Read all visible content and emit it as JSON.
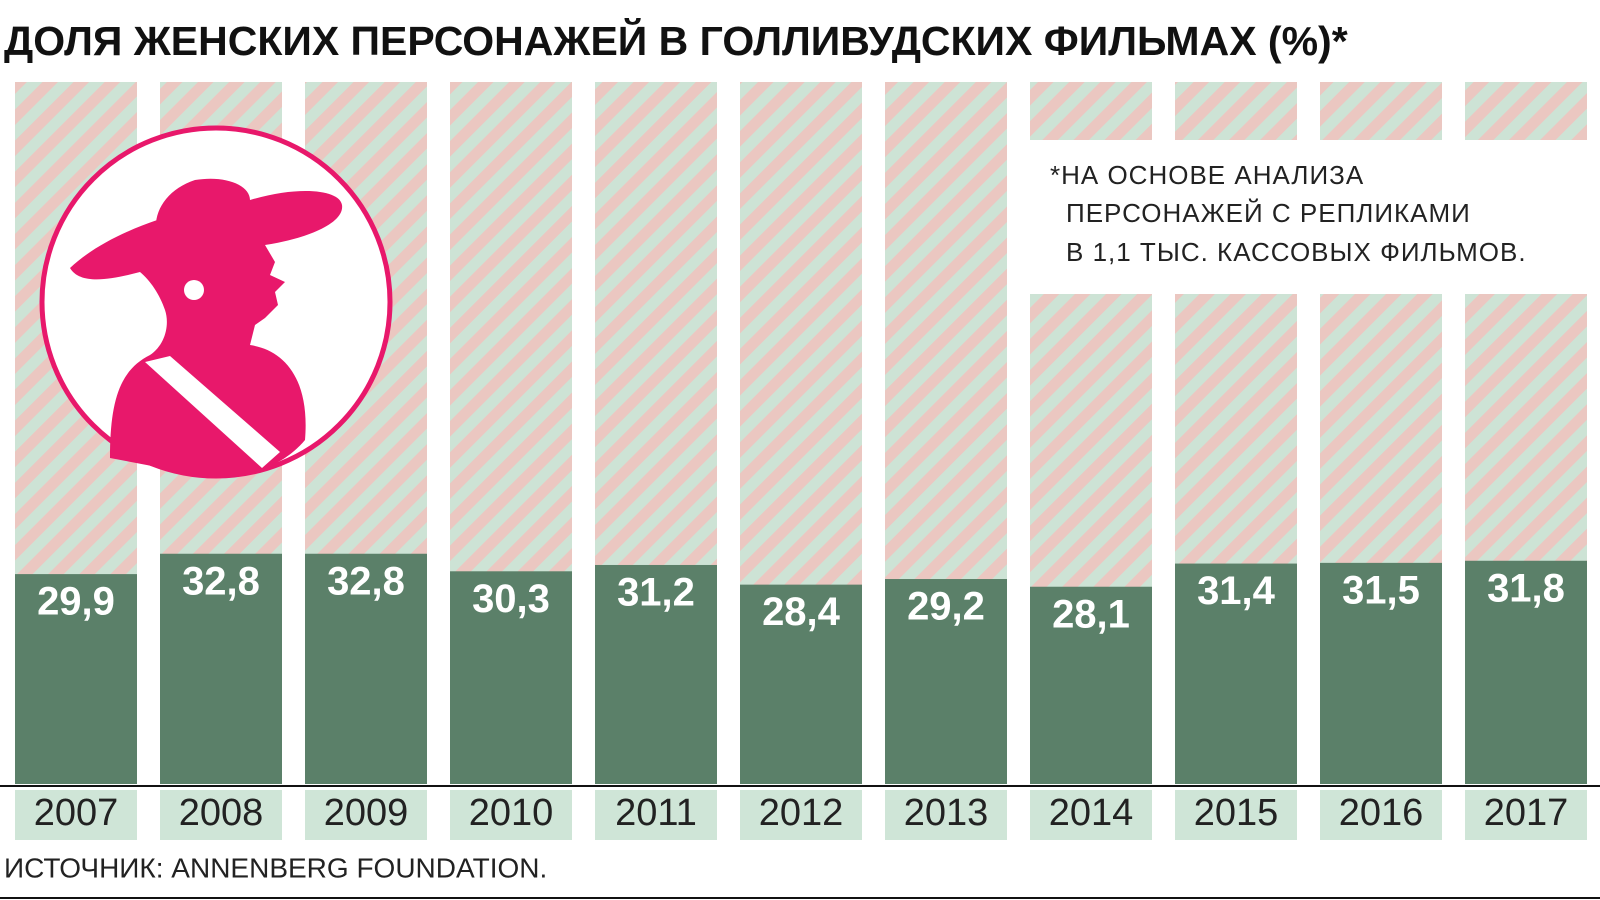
{
  "chart_data": {
    "type": "bar",
    "title": "ДОЛЯ ЖЕНСКИХ ПЕРСОНАЖЕЙ В ГОЛЛИВУДСКИХ ФИЛЬМАХ (%)*",
    "categories": [
      "2007",
      "2008",
      "2009",
      "2010",
      "2011",
      "2012",
      "2013",
      "2014",
      "2015",
      "2016",
      "2017"
    ],
    "values": [
      29.9,
      32.8,
      32.8,
      30.3,
      31.2,
      28.4,
      29.2,
      28.1,
      31.4,
      31.5,
      31.8
    ],
    "value_labels": [
      "29,9",
      "32,8",
      "32,8",
      "30,3",
      "31,2",
      "28,4",
      "29,2",
      "28,1",
      "31,4",
      "31,5",
      "31,8"
    ],
    "color": "#5b8069",
    "ylim": [
      0,
      100
    ],
    "note": [
      "*НА ОСНОВЕ АНАЛИЗА",
      "ПЕРСОНАЖЕЙ С РЕПЛИКАМИ",
      "В 1,1 ТЫС. КАССОВЫХ ФИЛЬМОВ."
    ],
    "source": "ИСТОЧНИК: ANNENBERG FOUNDATION."
  }
}
